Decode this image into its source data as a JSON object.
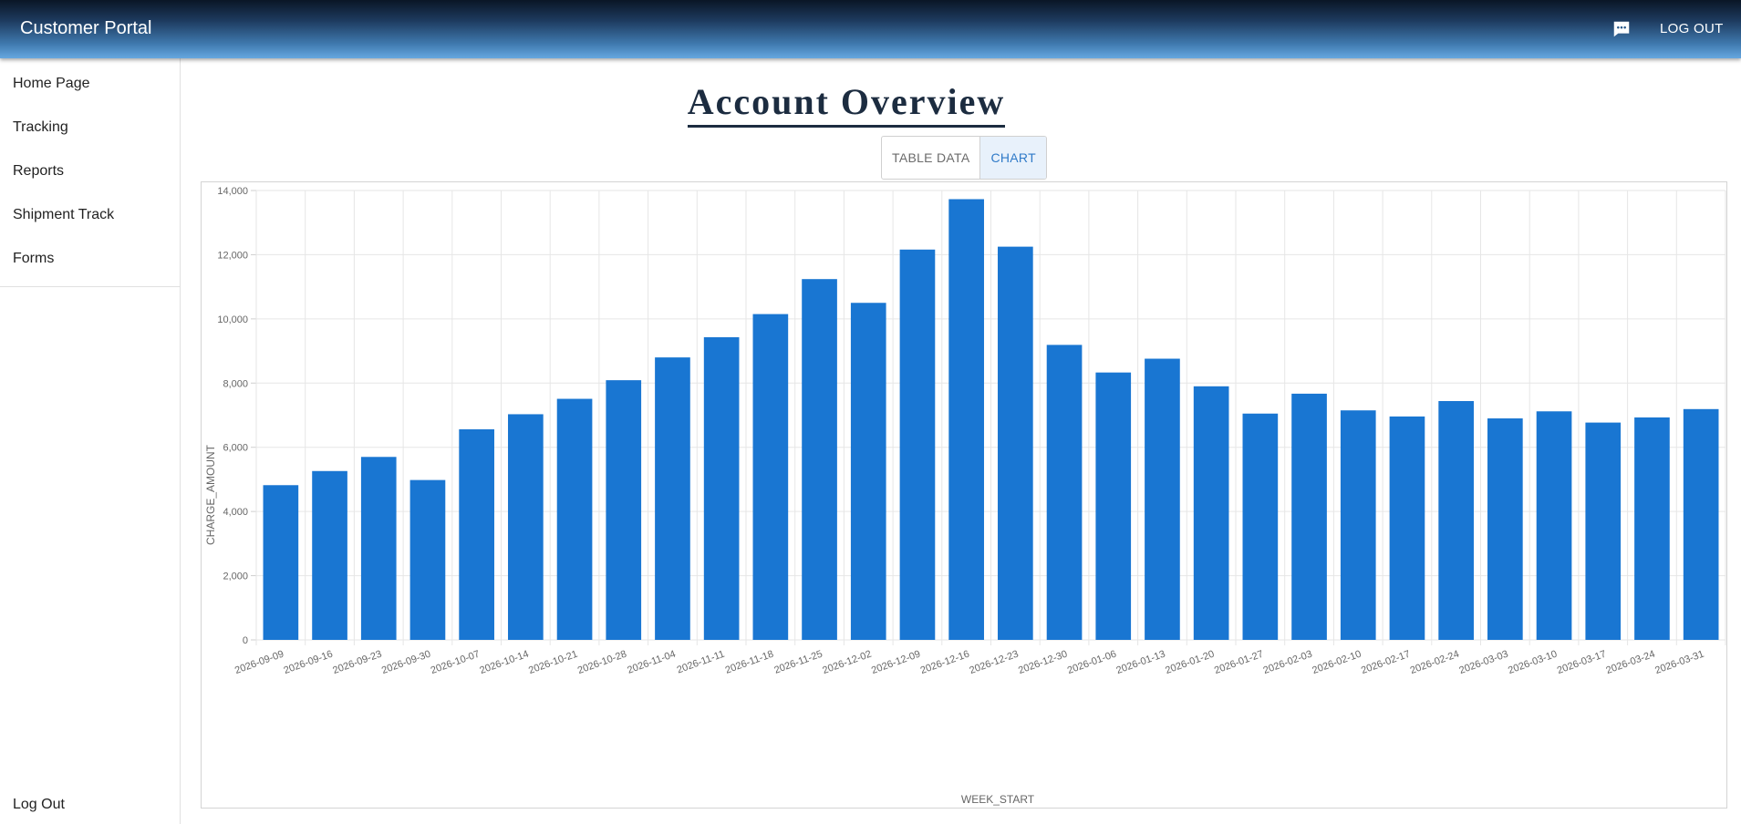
{
  "header": {
    "title": "Customer Portal",
    "chat_icon": "chat-icon",
    "logout_label": "LOG OUT"
  },
  "sidebar": {
    "items": [
      {
        "label": "Home Page"
      },
      {
        "label": "Tracking"
      },
      {
        "label": "Reports"
      },
      {
        "label": "Shipment Track"
      },
      {
        "label": "Forms"
      }
    ],
    "logout_label": "Log Out"
  },
  "main": {
    "title": "Account Overview",
    "tabs": [
      {
        "label": "TABLE DATA",
        "active": false
      },
      {
        "label": "CHART",
        "active": true
      }
    ]
  },
  "colors": {
    "bar": "#1976d2",
    "grid": "#e6e6e6"
  },
  "chart_data": {
    "type": "bar",
    "xlabel": "WEEK_START",
    "ylabel": "CHARGE_AMOUNT",
    "ylim": [
      0,
      14000
    ],
    "yticks": [
      0,
      2000,
      4000,
      6000,
      8000,
      10000,
      12000,
      14000
    ],
    "ytick_labels": [
      "0",
      "2,000",
      "4,000",
      "6,000",
      "8,000",
      "10,000",
      "12,000",
      "14,000"
    ],
    "grid": true,
    "categories": [
      "2026-09-09",
      "2026-09-16",
      "2026-09-23",
      "2026-09-30",
      "2026-10-07",
      "2026-10-14",
      "2026-10-21",
      "2026-10-28",
      "2026-11-04",
      "2026-11-11",
      "2026-11-18",
      "2026-11-25",
      "2026-12-02",
      "2026-12-09",
      "2026-12-16",
      "2026-12-23",
      "2026-12-30",
      "2026-01-06",
      "2026-01-13",
      "2026-01-20",
      "2026-01-27",
      "2026-02-03",
      "2026-02-10",
      "2026-02-17",
      "2026-02-24",
      "2026-03-03",
      "2026-03-10",
      "2026-03-17",
      "2026-03-24",
      "2026-03-31"
    ],
    "values": [
      4820,
      5260,
      5700,
      4980,
      6560,
      7030,
      7510,
      8090,
      8800,
      9430,
      10150,
      11240,
      10500,
      12160,
      13730,
      12250,
      9190,
      8330,
      8760,
      7900,
      7050,
      7670,
      7150,
      6960,
      7440,
      6900,
      7120,
      6770,
      6930,
      7190
    ]
  }
}
